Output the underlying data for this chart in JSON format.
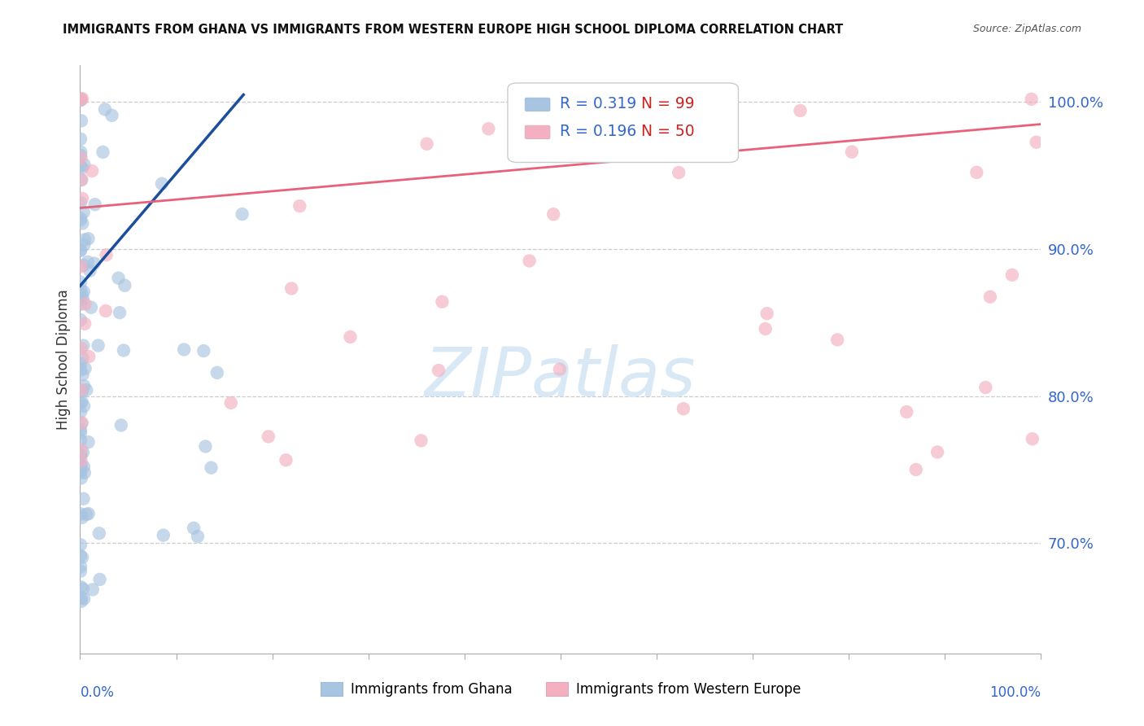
{
  "title": "IMMIGRANTS FROM GHANA VS IMMIGRANTS FROM WESTERN EUROPE HIGH SCHOOL DIPLOMA CORRELATION CHART",
  "source": "Source: ZipAtlas.com",
  "ylabel": "High School Diploma",
  "ytick_values": [
    0.7,
    0.8,
    0.9,
    1.0
  ],
  "ytick_labels": [
    "70.0%",
    "80.0%",
    "90.0%",
    "100.0%"
  ],
  "xlim": [
    0.0,
    1.0
  ],
  "ylim": [
    0.625,
    1.025
  ],
  "blue_R": 0.319,
  "blue_N": 99,
  "pink_R": 0.196,
  "pink_N": 50,
  "blue_color": "#A8C4E0",
  "pink_color": "#F4B0C0",
  "blue_line_color": "#1B4F9B",
  "pink_line_color": "#E8607A",
  "legend_label_blue": "Immigrants from Ghana",
  "legend_label_pink": "Immigrants from Western Europe",
  "annotation_color": "#3366CC",
  "watermark_color": "#D8E8F5",
  "grid_color": "#CCCCCC",
  "axis_color": "#AAAAAA",
  "ytick_color": "#3366CC",
  "xtick_color": "#3366CC"
}
